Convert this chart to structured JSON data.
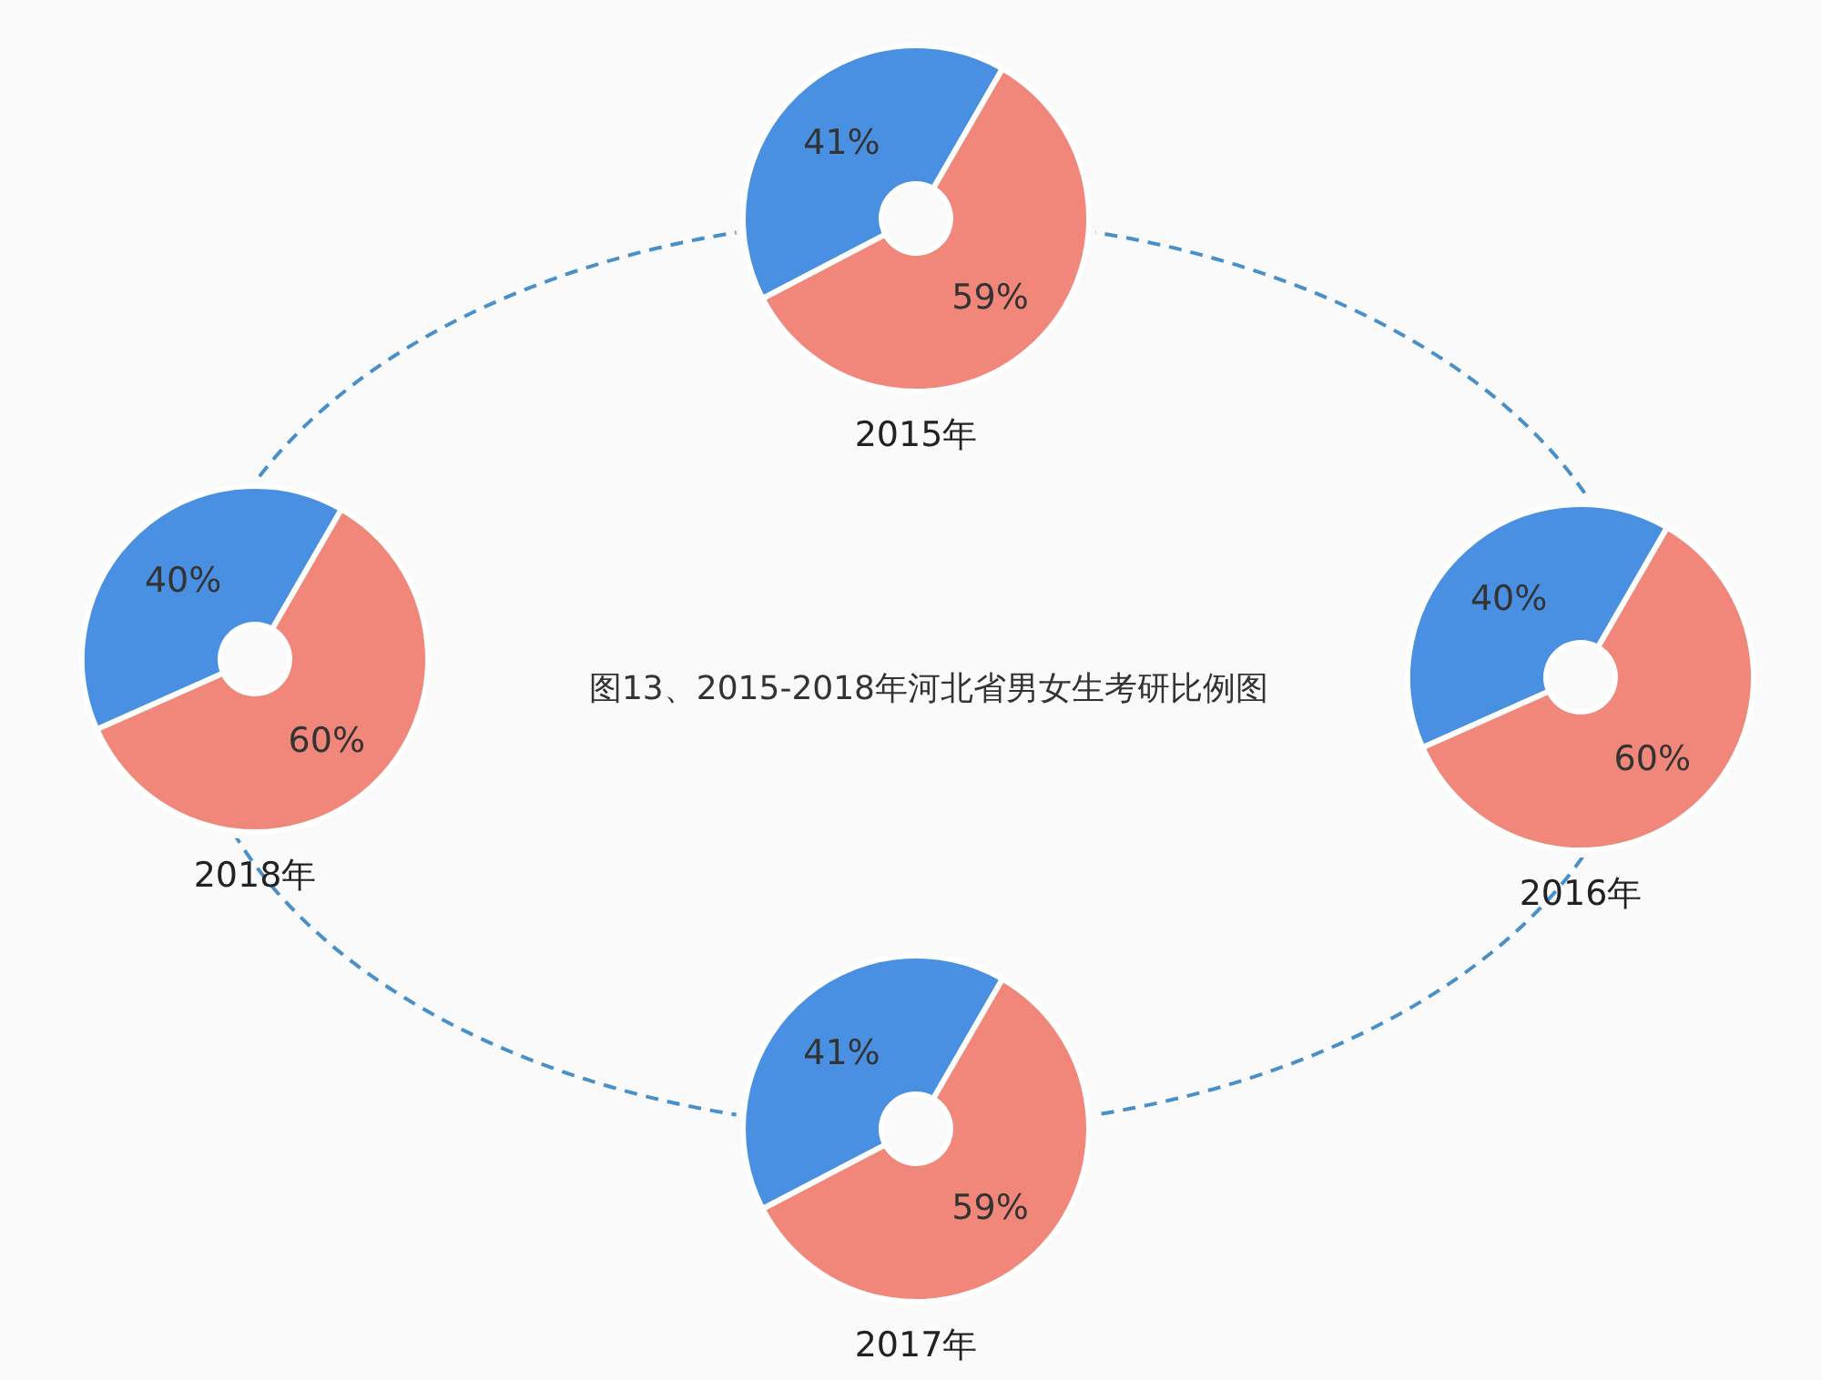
{
  "chart_data": [
    {
      "type": "donut",
      "title": "2015年",
      "categories": [
        null,
        null
      ],
      "values": [
        41,
        59
      ],
      "colors": [
        "#4a90e2",
        "#f0877a"
      ],
      "value_labels": [
        "41%",
        "59%"
      ]
    },
    {
      "type": "donut",
      "title": "2018年",
      "categories": [
        null,
        null
      ],
      "values": [
        40,
        60
      ],
      "colors": [
        "#4a90e2",
        "#f0877a"
      ],
      "value_labels": [
        "40%",
        "60%"
      ]
    },
    {
      "type": "other",
      "title": "图13、2015-2018年河北省男女生考研比例图"
    },
    {
      "type": "donut",
      "title": "2016年",
      "categories": [
        null,
        null
      ],
      "values": [
        40,
        60
      ],
      "colors": [
        "#4a90e2",
        "#f0877a"
      ],
      "value_labels": [
        "40%",
        "60%"
      ]
    },
    {
      "type": "donut",
      "title": "2017年",
      "categories": [
        null,
        null
      ],
      "values": [
        41,
        59
      ],
      "colors": [
        "#4a90e2",
        "#f0877a"
      ],
      "value_labels": [
        "41%",
        "59%"
      ]
    }
  ]
}
